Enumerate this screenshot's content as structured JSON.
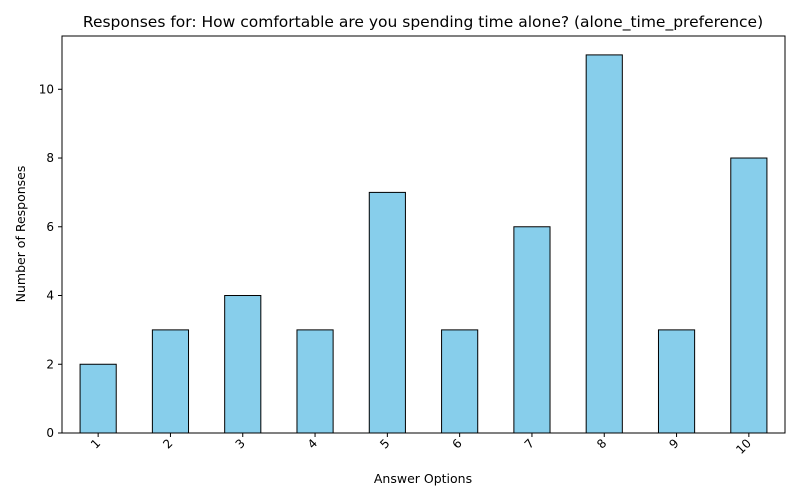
{
  "chart_data": {
    "type": "bar",
    "title": "Responses for: How comfortable are you spending time alone? (alone_time_preference)",
    "xlabel": "Answer Options",
    "ylabel": "Number of Responses",
    "categories": [
      "1",
      "2",
      "3",
      "4",
      "5",
      "6",
      "7",
      "8",
      "9",
      "10"
    ],
    "values": [
      2,
      3,
      4,
      3,
      7,
      3,
      6,
      11,
      3,
      8
    ],
    "ylim": [
      0,
      11.55
    ],
    "yticks": [
      0,
      2,
      4,
      6,
      8,
      10
    ],
    "grid": false,
    "bar_color": "#87ceeb",
    "bar_edge_color": "#000000"
  }
}
